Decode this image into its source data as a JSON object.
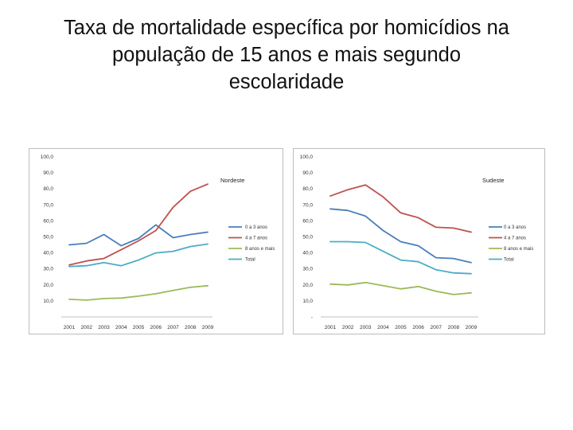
{
  "title": {
    "line1": "Taxa de mortalidade específica por homicídios na",
    "line2": "população de 15 anos e mais segundo",
    "line3": "escolaridade"
  },
  "chart_data": [
    {
      "type": "line",
      "region": "Nordeste",
      "categories": [
        "2001",
        "2002",
        "2003",
        "2004",
        "2005",
        "2006",
        "2007",
        "2008",
        "2009"
      ],
      "yticks": [
        "100,0",
        "90,0",
        "80,0",
        "70,0",
        "60,0",
        "50,0",
        "40,0",
        "30,0",
        "20,0",
        "10,0"
      ],
      "ylim": [
        0,
        100
      ],
      "legend_position": "right",
      "series": [
        {
          "name": "0 a 3 anos",
          "color": "#4a7ebb",
          "values": [
            45.0,
            46.0,
            51.5,
            44.5,
            49.0,
            57.5,
            49.5,
            51.5,
            53.0
          ]
        },
        {
          "name": "4 a 7 anos",
          "color": "#c0504d",
          "values": [
            32.5,
            35.0,
            36.5,
            42.0,
            47.5,
            54.0,
            68.5,
            78.5,
            83.0
          ]
        },
        {
          "name": "8 anos e mais",
          "color": "#9bbb59",
          "values": [
            11.0,
            10.5,
            11.5,
            11.8,
            13.0,
            14.5,
            16.5,
            18.5,
            19.5
          ]
        },
        {
          "name": "Total",
          "color": "#4bacc6",
          "values": [
            31.5,
            32.0,
            34.0,
            32.0,
            35.5,
            40.0,
            41.0,
            44.0,
            45.5
          ]
        }
      ]
    },
    {
      "type": "line",
      "region": "Sudeste",
      "categories": [
        "2001",
        "2002",
        "2003",
        "2004",
        "2005",
        "2006",
        "2007",
        "2008",
        "2009"
      ],
      "yticks": [
        "100,0",
        "90,0",
        "80,0",
        "70,0",
        "60,0",
        "50,0",
        "40,0",
        "30,0",
        "20,0",
        "10,0",
        "-"
      ],
      "ylim": [
        0,
        100
      ],
      "legend_position": "right",
      "series": [
        {
          "name": "0 a 3 anos",
          "color": "#4a7ebb",
          "values": [
            67.5,
            66.5,
            63.0,
            54.0,
            47.0,
            44.5,
            37.0,
            36.5,
            34.0
          ]
        },
        {
          "name": "4 a 7 anos",
          "color": "#c0504d",
          "values": [
            75.5,
            79.5,
            82.5,
            75.0,
            65.0,
            62.0,
            56.0,
            55.5,
            53.0
          ]
        },
        {
          "name": "8 anos e mais",
          "color": "#9bbb59",
          "values": [
            20.5,
            20.0,
            21.5,
            19.5,
            17.5,
            19.0,
            16.0,
            14.0,
            15.0
          ]
        },
        {
          "name": "Total",
          "color": "#4bacc6",
          "values": [
            47.0,
            47.0,
            46.5,
            41.0,
            35.5,
            34.5,
            29.5,
            27.5,
            27.0
          ]
        }
      ]
    }
  ]
}
